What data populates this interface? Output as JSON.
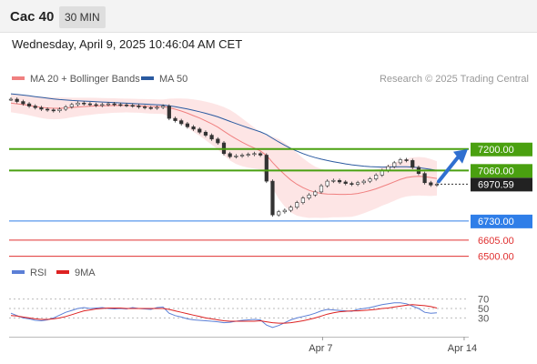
{
  "header": {
    "title": "Cac 40",
    "timeframe": "30 MIN",
    "datetime": "Wednesday, April 9, 2025 10:46:04 AM CET"
  },
  "legend": {
    "items": [
      {
        "label": "MA 20 + Bollinger Bands",
        "color": "#f08080"
      },
      {
        "label": "MA 50",
        "color": "#2a5aa0"
      }
    ],
    "credit": "Research © 2025 Trading Central"
  },
  "rsi_legend": {
    "items": [
      {
        "label": "RSI",
        "color": "#5b7fd6"
      },
      {
        "label": "9MA",
        "color": "#dd2222"
      }
    ]
  },
  "chart_data": [
    {
      "type": "line",
      "x_ticks": [
        "Apr 7",
        "Apr 14"
      ],
      "ylim": [
        6450,
        7650
      ],
      "current_price": {
        "value": 6970.59,
        "label": "6970.59"
      },
      "levels": [
        {
          "value": 7200.0,
          "label": "7200.00",
          "kind": "resistance",
          "color": "#4aa010"
        },
        {
          "value": 7060.0,
          "label": "7060.00",
          "kind": "resistance",
          "color": "#4aa010"
        },
        {
          "value": 6730.0,
          "label": "6730.00",
          "kind": "pivot",
          "color": "#2f7ee8"
        },
        {
          "value": 6605.0,
          "label": "6605.00",
          "kind": "support",
          "color": "#e03030"
        },
        {
          "value": 6500.0,
          "label": "6500.00",
          "kind": "support",
          "color": "#e03030"
        }
      ],
      "series": [
        {
          "name": "Price",
          "values": [
            7525,
            7510,
            7495,
            7480,
            7470,
            7460,
            7455,
            7450,
            7460,
            7475,
            7490,
            7500,
            7495,
            7490,
            7485,
            7490,
            7495,
            7490,
            7488,
            7485,
            7482,
            7475,
            7470,
            7468,
            7472,
            7480,
            7400,
            7385,
            7365,
            7345,
            7330,
            7310,
            7290,
            7265,
            7240,
            7170,
            7150,
            7155,
            7160,
            7165,
            7170,
            7160,
            6990,
            6770,
            6790,
            6800,
            6820,
            6850,
            6880,
            6900,
            6920,
            6960,
            6990,
            6995,
            6985,
            6975,
            6970,
            6980,
            6990,
            7005,
            7030,
            7060,
            7085,
            7110,
            7130,
            7125,
            7080,
            7040,
            6980,
            6965,
            6970.59
          ]
        },
        {
          "name": "MA 20",
          "values": [
            7500,
            7495,
            7490,
            7484,
            7478,
            7472,
            7468,
            7466,
            7466,
            7468,
            7471,
            7474,
            7477,
            7479,
            7481,
            7482,
            7483,
            7484,
            7484,
            7484,
            7483,
            7482,
            7480,
            7478,
            7477,
            7476,
            7470,
            7460,
            7448,
            7434,
            7418,
            7402,
            7384,
            7364,
            7343,
            7316,
            7290,
            7266,
            7244,
            7224,
            7206,
            7188,
            7158,
            7112,
            7070,
            7032,
            6998,
            6970,
            6948,
            6930,
            6918,
            6910,
            6906,
            6905,
            6904,
            6904,
            6905,
            6910,
            6918,
            6928,
            6940,
            6955,
            6970,
            6986,
            7002,
            7014,
            7020,
            7022,
            7020,
            7014,
            7008
          ]
        },
        {
          "name": "MA 50",
          "values": [
            7560,
            7556,
            7552,
            7547,
            7542,
            7537,
            7532,
            7527,
            7523,
            7520,
            7517,
            7515,
            7513,
            7511,
            7509,
            7507,
            7505,
            7503,
            7501,
            7499,
            7497,
            7495,
            7493,
            7491,
            7489,
            7487,
            7482,
            7476,
            7469,
            7461,
            7452,
            7443,
            7433,
            7422,
            7410,
            7395,
            7380,
            7366,
            7352,
            7338,
            7325,
            7312,
            7295,
            7270,
            7246,
            7224,
            7204,
            7186,
            7170,
            7156,
            7144,
            7134,
            7125,
            7117,
            7110,
            7103,
            7097,
            7092,
            7088,
            7085,
            7083,
            7082,
            7082,
            7083,
            7084,
            7084,
            7082,
            7078,
            7073,
            7067,
            7060
          ]
        },
        {
          "name": "Bollinger Upper",
          "values": [
            7560,
            7556,
            7552,
            7548,
            7545,
            7542,
            7540,
            7538,
            7537,
            7536,
            7535,
            7535,
            7535,
            7535,
            7534,
            7533,
            7532,
            7531,
            7530,
            7529,
            7528,
            7527,
            7526,
            7525,
            7524,
            7523,
            7528,
            7530,
            7530,
            7528,
            7524,
            7518,
            7510,
            7500,
            7488,
            7474,
            7455,
            7430,
            7400,
            7370,
            7340,
            7310,
            7290,
            7280,
            7265,
            7240,
            7210,
            7175,
            7140,
            7110,
            7085,
            7070,
            7060,
            7055,
            7053,
            7052,
            7052,
            7053,
            7056,
            7060,
            7068,
            7080,
            7095,
            7110,
            7125,
            7138,
            7145,
            7148,
            7145,
            7135,
            7120
          ]
        },
        {
          "name": "Bollinger Lower",
          "values": [
            7440,
            7434,
            7428,
            7420,
            7411,
            7402,
            7396,
            7394,
            7395,
            7400,
            7407,
            7413,
            7419,
            7423,
            7428,
            7431,
            7434,
            7437,
            7438,
            7439,
            7438,
            7437,
            7434,
            7431,
            7430,
            7429,
            7412,
            7390,
            7366,
            7340,
            7312,
            7286,
            7258,
            7228,
            7198,
            7158,
            7125,
            7102,
            7088,
            7078,
            7072,
            7066,
            7026,
            6944,
            6875,
            6824,
            6786,
            6765,
            6756,
            6750,
            6751,
            6750,
            6752,
            6755,
            6755,
            6756,
            6758,
            6767,
            6780,
            6796,
            6812,
            6830,
            6845,
            6862,
            6879,
            6890,
            6895,
            6896,
            6895,
            6893,
            6896
          ]
        }
      ],
      "forecast": {
        "direction": "up",
        "from": 6970.59,
        "to": 7200.0
      }
    },
    {
      "type": "line",
      "name": "RSI panel",
      "ylim": [
        0,
        100
      ],
      "y_ticks": [
        70,
        50,
        30
      ],
      "series": [
        {
          "name": "RSI",
          "values": [
            40,
            35,
            30,
            28,
            25,
            24,
            26,
            30,
            36,
            42,
            46,
            50,
            52,
            50,
            51,
            52,
            50,
            49,
            50,
            49,
            52,
            50,
            49,
            48,
            52,
            53,
            40,
            35,
            32,
            28,
            26,
            25,
            24,
            23,
            22,
            20,
            21,
            23,
            25,
            26,
            27,
            26,
            15,
            10,
            14,
            20,
            26,
            30,
            33,
            36,
            40,
            45,
            48,
            47,
            46,
            45,
            44,
            48,
            50,
            52,
            55,
            58,
            60,
            62,
            62,
            60,
            55,
            50,
            42,
            40,
            41
          ]
        },
        {
          "name": "9MA",
          "values": [
            35,
            34,
            32,
            30,
            28,
            27,
            27,
            28,
            30,
            33,
            37,
            41,
            45,
            47,
            49,
            50,
            51,
            51,
            51,
            50,
            50,
            50,
            50,
            50,
            50,
            50,
            48,
            45,
            42,
            39,
            36,
            33,
            30,
            28,
            26,
            24,
            23,
            23,
            23,
            23,
            23,
            24,
            22,
            20,
            19,
            19,
            20,
            22,
            24,
            27,
            30,
            34,
            38,
            41,
            43,
            44,
            45,
            45,
            46,
            47,
            48,
            50,
            51,
            53,
            55,
            57,
            58,
            57,
            56,
            54,
            51
          ]
        }
      ]
    }
  ]
}
